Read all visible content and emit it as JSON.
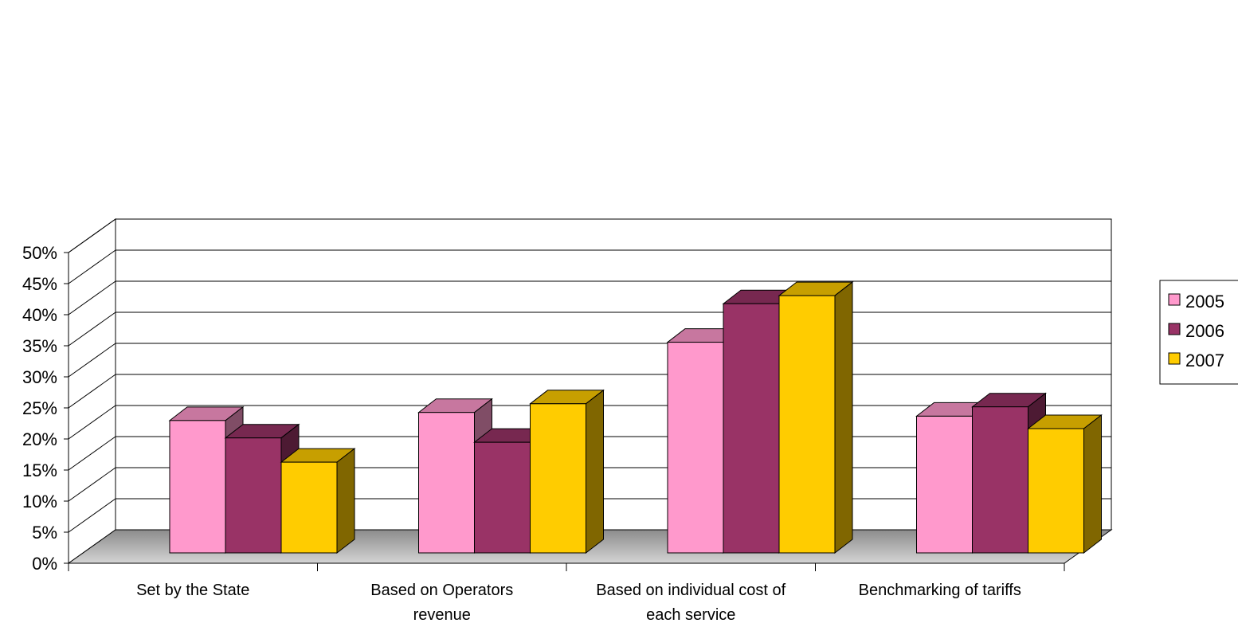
{
  "chart_data": {
    "type": "bar",
    "title": "",
    "xlabel": "",
    "ylabel": "",
    "ylim": [
      0,
      50
    ],
    "y_ticks": [
      "0%",
      "5%",
      "10%",
      "15%",
      "20%",
      "25%",
      "30%",
      "35%",
      "40%",
      "45%",
      "50%"
    ],
    "categories": [
      [
        "Set by the State"
      ],
      [
        "Based on Operators",
        "revenue"
      ],
      [
        "Based on individual cost of",
        "each service"
      ],
      [
        "Benchmarking of tariffs"
      ]
    ],
    "series": [
      {
        "name": "2005",
        "color": "#FF99CC",
        "values": [
          21.3,
          22.6,
          33.9,
          22.0
        ]
      },
      {
        "name": "2006",
        "color": "#993366",
        "values": [
          18.5,
          17.8,
          40.1,
          23.5
        ]
      },
      {
        "name": "2007",
        "color": "#FFCC00",
        "values": [
          14.6,
          24.0,
          41.4,
          20.0
        ]
      }
    ],
    "grid": true,
    "legend_position": "right",
    "style": "3d-clustered-column"
  }
}
